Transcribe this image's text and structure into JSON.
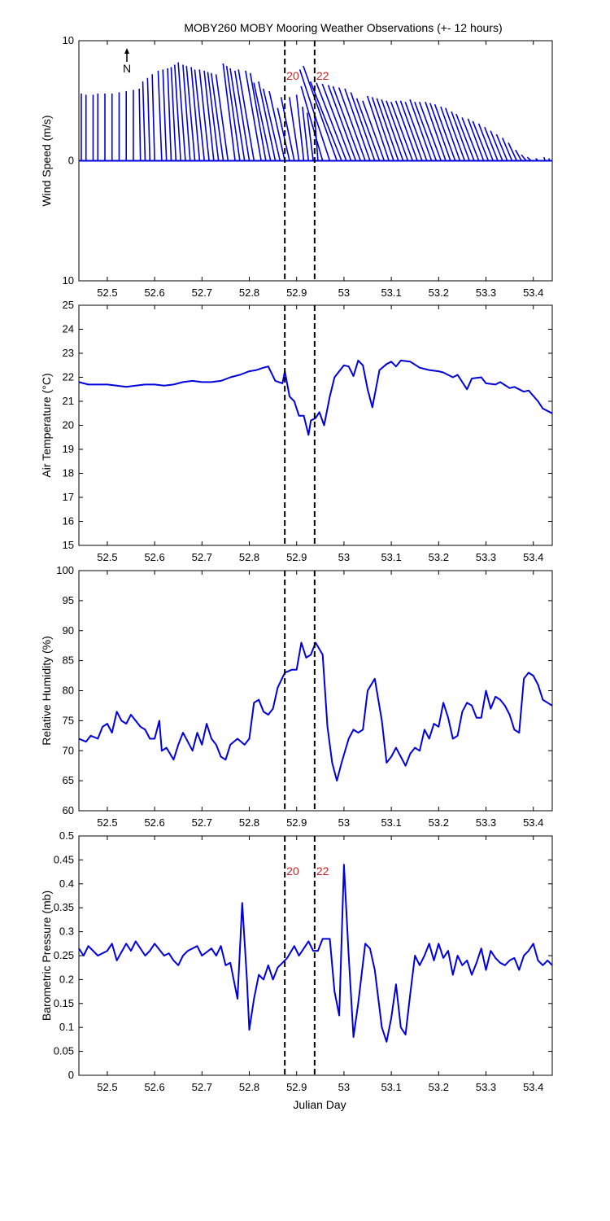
{
  "title": "MOBY260 MOBY Mooring Weather Observations (+- 12 hours)",
  "xlabel": "Julian Day",
  "xticks": [
    "52.5",
    "52.6",
    "52.7",
    "52.8",
    "52.9",
    "53",
    "53.1",
    "53.2",
    "53.3",
    "53.4"
  ],
  "markers": {
    "lines": [
      52.875,
      52.938
    ],
    "labels": [
      "20",
      "22"
    ],
    "label_color": "#cc2222"
  },
  "north_label": "N",
  "colors": {
    "series": "#0000dd",
    "marker_line": "#000000"
  },
  "chart_data": [
    {
      "type": "wind-stick",
      "ylabel": "Wind Speed (m/s)",
      "yticks": [
        "10",
        "0",
        "10"
      ],
      "ylim": [
        -10,
        10
      ],
      "xlim": [
        52.44,
        53.44
      ],
      "show_marker_labels": true,
      "sticks": [
        [
          52.445,
          0,
          5.6
        ],
        [
          52.455,
          0,
          5.5
        ],
        [
          52.47,
          0,
          5.5
        ],
        [
          52.48,
          0,
          5.6
        ],
        [
          52.495,
          0,
          5.6
        ],
        [
          52.51,
          0,
          5.6
        ],
        [
          52.525,
          0,
          5.7
        ],
        [
          52.54,
          0,
          5.8
        ],
        [
          52.555,
          0,
          5.9
        ],
        [
          52.57,
          -0.1,
          6.0
        ],
        [
          52.58,
          -0.2,
          6.6
        ],
        [
          52.59,
          -0.2,
          6.9
        ],
        [
          52.6,
          -0.2,
          7.2
        ],
        [
          52.615,
          -0.3,
          7.5
        ],
        [
          52.625,
          -0.3,
          7.6
        ],
        [
          52.635,
          -0.3,
          7.7
        ],
        [
          52.645,
          -0.4,
          7.8
        ],
        [
          52.655,
          -0.5,
          8.0
        ],
        [
          52.665,
          -0.6,
          8.2
        ],
        [
          52.675,
          -0.6,
          8.0
        ],
        [
          52.685,
          -0.7,
          7.9
        ],
        [
          52.695,
          -0.7,
          7.8
        ],
        [
          52.705,
          -0.8,
          7.6
        ],
        [
          52.715,
          -0.8,
          7.6
        ],
        [
          52.725,
          -0.8,
          7.5
        ],
        [
          52.735,
          -0.9,
          7.4
        ],
        [
          52.745,
          -1.0,
          7.3
        ],
        [
          52.755,
          -1.0,
          7.2
        ],
        [
          52.77,
          -1.0,
          8.1
        ],
        [
          52.78,
          -1.1,
          7.9
        ],
        [
          52.79,
          -1.2,
          7.7
        ],
        [
          52.8,
          -1.2,
          7.5
        ],
        [
          52.81,
          -1.3,
          7.6
        ],
        [
          52.825,
          -1.3,
          7.5
        ],
        [
          52.835,
          -1.3,
          7.3
        ],
        [
          52.845,
          -1.4,
          6.5
        ],
        [
          52.855,
          -1.4,
          6.6
        ],
        [
          52.865,
          -1.4,
          6.0
        ],
        [
          52.875,
          -1.3,
          5.8
        ],
        [
          52.885,
          -1.0,
          4.4
        ],
        [
          52.895,
          -1.1,
          5.3
        ],
        [
          52.905,
          -0.8,
          5.3
        ],
        [
          52.915,
          -0.6,
          5.5
        ],
        [
          52.925,
          -0.5,
          4.5
        ],
        [
          52.935,
          -0.5,
          4.0
        ],
        [
          52.945,
          -0.3,
          4.0
        ],
        [
          52.955,
          -1.8,
          6.2
        ],
        [
          52.97,
          -2.5,
          7.6
        ],
        [
          52.985,
          -2.8,
          7.9
        ],
        [
          52.995,
          -2.6,
          6.6
        ],
        [
          53.005,
          -2.5,
          6.5
        ],
        [
          53.015,
          -2.4,
          6.4
        ],
        [
          53.025,
          -2.3,
          6.3
        ],
        [
          53.035,
          -2.3,
          6.2
        ],
        [
          53.045,
          -2.2,
          6.1
        ],
        [
          53.055,
          -2.1,
          6.0
        ],
        [
          53.065,
          -2.0,
          5.7
        ],
        [
          53.075,
          -1.9,
          5.2
        ],
        [
          53.085,
          -1.8,
          5.0
        ],
        [
          53.095,
          -1.8,
          5.4
        ],
        [
          53.105,
          -1.8,
          5.3
        ],
        [
          53.115,
          -1.8,
          5.2
        ],
        [
          53.125,
          -1.8,
          5.1
        ],
        [
          53.135,
          -1.8,
          5.0
        ],
        [
          53.145,
          -1.8,
          4.9
        ],
        [
          53.155,
          -1.8,
          5.0
        ],
        [
          53.165,
          -1.8,
          5.0
        ],
        [
          53.175,
          -1.8,
          4.9
        ],
        [
          53.185,
          -1.8,
          5.1
        ],
        [
          53.195,
          -1.8,
          4.9
        ],
        [
          53.205,
          -1.8,
          4.9
        ],
        [
          53.215,
          -1.7,
          4.9
        ],
        [
          53.225,
          -1.7,
          4.8
        ],
        [
          53.235,
          -1.7,
          4.7
        ],
        [
          53.245,
          -1.6,
          4.5
        ],
        [
          53.255,
          -1.6,
          4.4
        ],
        [
          53.265,
          -1.5,
          4.1
        ],
        [
          53.275,
          -1.5,
          3.9
        ],
        [
          53.285,
          -1.4,
          3.6
        ],
        [
          53.295,
          -1.3,
          3.5
        ],
        [
          53.305,
          -1.3,
          3.3
        ],
        [
          53.315,
          -1.2,
          3.1
        ],
        [
          53.325,
          -1.1,
          2.8
        ],
        [
          53.335,
          -1.0,
          2.5
        ],
        [
          53.345,
          -0.9,
          2.2
        ],
        [
          53.355,
          -0.8,
          1.9
        ],
        [
          53.365,
          -0.7,
          1.5
        ],
        [
          53.375,
          -0.5,
          0.9
        ],
        [
          53.385,
          -0.4,
          0.5
        ],
        [
          53.395,
          -0.3,
          0.3
        ],
        [
          53.41,
          -0.2,
          0.2
        ],
        [
          53.425,
          -0.1,
          0.3
        ],
        [
          53.435,
          -0.1,
          0.2
        ]
      ]
    },
    {
      "type": "line",
      "ylabel": "Air Temperature (°C)",
      "yticks": [
        "15",
        "16",
        "17",
        "18",
        "19",
        "20",
        "21",
        "22",
        "23",
        "24",
        "25"
      ],
      "ylim": [
        15,
        25
      ],
      "xlim": [
        52.44,
        53.44
      ],
      "show_marker_labels": false,
      "x": [
        52.44,
        52.46,
        52.48,
        52.5,
        52.52,
        52.54,
        52.56,
        52.58,
        52.6,
        52.62,
        52.64,
        52.66,
        52.68,
        52.7,
        52.72,
        52.74,
        52.76,
        52.78,
        52.8,
        52.815,
        52.83,
        52.84,
        52.855,
        52.87,
        52.875,
        52.885,
        52.895,
        52.905,
        52.915,
        52.925,
        52.93,
        52.94,
        52.948,
        52.958,
        52.97,
        52.98,
        53.0,
        53.01,
        53.02,
        53.03,
        53.04,
        53.05,
        53.06,
        53.075,
        53.09,
        53.1,
        53.11,
        53.12,
        53.14,
        53.16,
        53.18,
        53.2,
        53.21,
        53.23,
        53.24,
        53.26,
        53.27,
        53.29,
        53.3,
        53.32,
        53.33,
        53.35,
        53.36,
        53.38,
        53.39,
        53.41,
        53.42,
        53.44
      ],
      "y": [
        21.8,
        21.7,
        21.7,
        21.7,
        21.65,
        21.6,
        21.65,
        21.7,
        21.7,
        21.65,
        21.7,
        21.8,
        21.85,
        21.8,
        21.8,
        21.85,
        22.0,
        22.1,
        22.25,
        22.3,
        22.4,
        22.45,
        21.85,
        21.75,
        22.25,
        21.2,
        21.0,
        20.4,
        20.4,
        19.6,
        20.2,
        20.3,
        20.55,
        20.0,
        21.2,
        22.0,
        22.5,
        22.45,
        22.05,
        22.7,
        22.5,
        21.5,
        20.75,
        22.3,
        22.55,
        22.65,
        22.45,
        22.7,
        22.65,
        22.4,
        22.3,
        22.25,
        22.2,
        22.0,
        22.1,
        21.5,
        21.95,
        22.0,
        21.75,
        21.7,
        21.8,
        21.55,
        21.6,
        21.4,
        21.45,
        21.0,
        20.7,
        20.5
      ]
    },
    {
      "type": "line",
      "ylabel": "Relative Humidity (%)",
      "yticks": [
        "60",
        "65",
        "70",
        "75",
        "80",
        "85",
        "90",
        "95",
        "100"
      ],
      "ylim": [
        60,
        100
      ],
      "xlim": [
        52.44,
        53.44
      ],
      "show_marker_labels": false,
      "x": [
        52.44,
        52.455,
        52.465,
        52.48,
        52.49,
        52.5,
        52.51,
        52.52,
        52.53,
        52.54,
        52.55,
        52.56,
        52.57,
        52.58,
        52.59,
        52.6,
        52.61,
        52.615,
        52.625,
        52.64,
        52.65,
        52.66,
        52.67,
        52.68,
        52.69,
        52.7,
        52.71,
        52.72,
        52.73,
        52.74,
        52.75,
        52.76,
        52.775,
        52.79,
        52.8,
        52.81,
        52.82,
        52.83,
        52.84,
        52.85,
        52.86,
        52.875,
        52.89,
        52.9,
        52.91,
        52.92,
        52.93,
        52.94,
        52.955,
        52.965,
        52.975,
        52.985,
        52.995,
        53.01,
        53.02,
        53.03,
        53.04,
        53.05,
        53.065,
        53.08,
        53.09,
        53.1,
        53.11,
        53.12,
        53.13,
        53.14,
        53.15,
        53.16,
        53.17,
        53.18,
        53.19,
        53.2,
        53.21,
        53.22,
        53.23,
        53.24,
        53.25,
        53.26,
        53.27,
        53.28,
        53.29,
        53.3,
        53.31,
        53.32,
        53.33,
        53.34,
        53.35,
        53.36,
        53.37,
        53.38,
        53.39,
        53.4,
        53.41,
        53.42,
        53.43,
        53.44
      ],
      "y": [
        72,
        71.5,
        72.5,
        72,
        74,
        74.5,
        73,
        76.5,
        75,
        74.5,
        76,
        75,
        74,
        73.5,
        72,
        72,
        75,
        70,
        70.5,
        68.5,
        71,
        73,
        71.5,
        70,
        73,
        71,
        74.5,
        72,
        71,
        69,
        68.5,
        71,
        72,
        71,
        72,
        78,
        78.5,
        76.5,
        76,
        77,
        80.5,
        83,
        83.5,
        83.5,
        88,
        85.5,
        86,
        88,
        86,
        74,
        68,
        65,
        68,
        72,
        73.5,
        73,
        73.5,
        80,
        82,
        75,
        68,
        69,
        70.5,
        69,
        67.5,
        69.5,
        70.5,
        70,
        73.5,
        72,
        74.5,
        74,
        78,
        75.5,
        72,
        72.5,
        76.5,
        78,
        77.5,
        75.5,
        75.5,
        80,
        77,
        79,
        78.5,
        77.5,
        76,
        73.5,
        73,
        82,
        83,
        82.5,
        81,
        78.5,
        78,
        77.5
      ]
    },
    {
      "type": "line",
      "ylabel": "Barometric Pressure (mb)",
      "yticks": [
        "0",
        "0.05",
        "0.1",
        "0.15",
        "0.2",
        "0.25",
        "0.3",
        "0.35",
        "0.4",
        "0.45",
        "0.5"
      ],
      "ylim": [
        0,
        0.5
      ],
      "xlim": [
        52.44,
        53.44
      ],
      "show_marker_labels": true,
      "x": [
        52.44,
        52.45,
        52.46,
        52.48,
        52.5,
        52.51,
        52.52,
        52.54,
        52.55,
        52.56,
        52.58,
        52.59,
        52.6,
        52.62,
        52.63,
        52.64,
        52.65,
        52.66,
        52.67,
        52.69,
        52.7,
        52.72,
        52.73,
        52.74,
        52.75,
        52.76,
        52.775,
        52.785,
        52.795,
        52.8,
        52.81,
        52.82,
        52.83,
        52.84,
        52.85,
        52.86,
        52.87,
        52.88,
        52.895,
        52.905,
        52.915,
        52.925,
        52.935,
        52.945,
        52.955,
        52.97,
        52.98,
        52.99,
        53.0,
        53.01,
        53.02,
        53.03,
        53.045,
        53.055,
        53.065,
        53.08,
        53.09,
        53.1,
        53.11,
        53.12,
        53.13,
        53.14,
        53.15,
        53.16,
        53.17,
        53.18,
        53.19,
        53.2,
        53.21,
        53.22,
        53.23,
        53.24,
        53.25,
        53.26,
        53.27,
        53.28,
        53.29,
        53.3,
        53.31,
        53.32,
        53.33,
        53.34,
        53.35,
        53.36,
        53.37,
        53.38,
        53.39,
        53.4,
        53.41,
        53.42,
        53.43,
        53.44
      ],
      "y": [
        0.265,
        0.25,
        0.27,
        0.25,
        0.26,
        0.275,
        0.24,
        0.275,
        0.26,
        0.28,
        0.25,
        0.26,
        0.275,
        0.25,
        0.255,
        0.24,
        0.23,
        0.25,
        0.26,
        0.27,
        0.25,
        0.265,
        0.25,
        0.27,
        0.23,
        0.235,
        0.16,
        0.36,
        0.2,
        0.095,
        0.16,
        0.21,
        0.2,
        0.23,
        0.2,
        0.225,
        0.235,
        0.245,
        0.27,
        0.25,
        0.265,
        0.28,
        0.26,
        0.26,
        0.285,
        0.285,
        0.175,
        0.125,
        0.44,
        0.25,
        0.08,
        0.15,
        0.275,
        0.265,
        0.22,
        0.1,
        0.07,
        0.12,
        0.19,
        0.1,
        0.085,
        0.17,
        0.25,
        0.23,
        0.25,
        0.275,
        0.24,
        0.275,
        0.245,
        0.26,
        0.21,
        0.25,
        0.23,
        0.24,
        0.21,
        0.235,
        0.265,
        0.22,
        0.26,
        0.245,
        0.235,
        0.23,
        0.24,
        0.245,
        0.22,
        0.25,
        0.26,
        0.275,
        0.24,
        0.23,
        0.24,
        0.23
      ]
    }
  ]
}
